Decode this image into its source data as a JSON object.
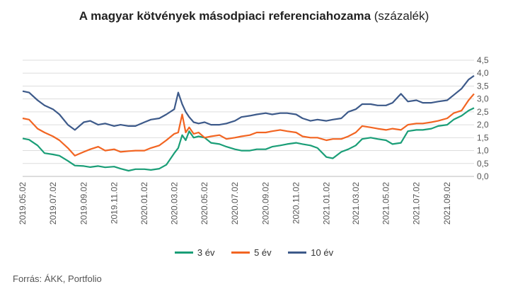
{
  "title": {
    "main": "A magyar kötvények másodpiaci referenciahozama",
    "unit": "(százalék)"
  },
  "source": "Forrás: ÁKK, Portfolio",
  "colors": {
    "series_3y": "#1a9e77",
    "series_5y": "#f26522",
    "series_10y": "#3d5a8a",
    "grid": "#dddddd",
    "axis_text": "#555555"
  },
  "legend": [
    {
      "label": "3 év",
      "color": "#1a9e77"
    },
    {
      "label": "5 év",
      "color": "#f26522"
    },
    {
      "label": "10 év",
      "color": "#3d5a8a"
    }
  ],
  "chart_data": {
    "type": "line",
    "title": "A magyar kötvények másodpiaci referenciahozama (százalék)",
    "ylim": [
      0,
      4.5
    ],
    "yticks": [
      "4,5",
      "4,0",
      "3,5",
      "3,0",
      "2,5",
      "2,0",
      "1,5",
      "1,0",
      "0,5",
      "0,0"
    ],
    "y_axis_side": "right",
    "grid": "horizontal",
    "legend_position": "bottom",
    "xticks": [
      "2019.05.02",
      "2019.07.02",
      "2019.09.02",
      "2019.11.02",
      "2020.01.02",
      "2020.03.02",
      "2020.05.02",
      "2020.07.02",
      "2020.09.02",
      "2020.11.02",
      "2021.01.02",
      "2021.03.02",
      "2021.05.02",
      "2021.07.02",
      "2021.09.02"
    ],
    "x": [
      "2019.05.02",
      "2019.05.15",
      "2019.06.01",
      "2019.06.15",
      "2019.07.02",
      "2019.07.15",
      "2019.08.01",
      "2019.08.15",
      "2019.09.02",
      "2019.09.15",
      "2019.10.01",
      "2019.10.15",
      "2019.11.02",
      "2019.11.15",
      "2019.12.01",
      "2019.12.15",
      "2020.01.02",
      "2020.01.15",
      "2020.02.01",
      "2020.02.15",
      "2020.03.02",
      "2020.03.10",
      "2020.03.18",
      "2020.03.25",
      "2020.04.01",
      "2020.04.10",
      "2020.04.20",
      "2020.05.02",
      "2020.05.15",
      "2020.06.01",
      "2020.06.15",
      "2020.07.02",
      "2020.07.15",
      "2020.08.01",
      "2020.08.15",
      "2020.09.02",
      "2020.09.15",
      "2020.10.01",
      "2020.10.15",
      "2020.11.02",
      "2020.11.15",
      "2020.12.01",
      "2020.12.15",
      "2021.01.02",
      "2021.01.15",
      "2021.02.01",
      "2021.02.15",
      "2021.03.02",
      "2021.03.15",
      "2021.04.01",
      "2021.04.15",
      "2021.05.02",
      "2021.05.15",
      "2021.06.01",
      "2021.06.15",
      "2021.07.02",
      "2021.07.15",
      "2021.08.01",
      "2021.08.15",
      "2021.09.02",
      "2021.09.15",
      "2021.10.01",
      "2021.10.15",
      "2021.10.26"
    ],
    "series": [
      {
        "name": "3 év",
        "values": [
          1.47,
          1.42,
          1.2,
          0.9,
          0.85,
          0.8,
          0.6,
          0.42,
          0.4,
          0.36,
          0.4,
          0.35,
          0.38,
          0.3,
          0.22,
          0.28,
          0.28,
          0.25,
          0.3,
          0.45,
          0.9,
          1.1,
          1.6,
          1.4,
          1.75,
          1.5,
          1.55,
          1.5,
          1.3,
          1.25,
          1.15,
          1.05,
          1.0,
          1.0,
          1.05,
          1.05,
          1.15,
          1.2,
          1.25,
          1.3,
          1.25,
          1.2,
          1.1,
          0.75,
          0.7,
          0.95,
          1.05,
          1.2,
          1.45,
          1.5,
          1.45,
          1.4,
          1.25,
          1.3,
          1.75,
          1.8,
          1.8,
          1.85,
          1.95,
          2.0,
          2.2,
          2.35,
          2.55,
          2.65
        ]
      },
      {
        "name": "5 év",
        "values": [
          2.25,
          2.2,
          1.85,
          1.7,
          1.55,
          1.4,
          1.1,
          0.8,
          0.95,
          1.05,
          1.15,
          1.0,
          1.05,
          0.95,
          0.98,
          1.0,
          1.0,
          1.1,
          1.2,
          1.4,
          1.65,
          1.7,
          2.4,
          1.7,
          1.9,
          1.65,
          1.7,
          1.5,
          1.55,
          1.6,
          1.45,
          1.5,
          1.55,
          1.6,
          1.7,
          1.7,
          1.75,
          1.8,
          1.75,
          1.7,
          1.55,
          1.5,
          1.5,
          1.4,
          1.45,
          1.45,
          1.55,
          1.7,
          1.95,
          1.9,
          1.85,
          1.8,
          1.85,
          1.8,
          2.0,
          2.05,
          2.05,
          2.1,
          2.15,
          2.25,
          2.45,
          2.55,
          2.95,
          3.2
        ]
      },
      {
        "name": "10 év",
        "values": [
          3.3,
          3.25,
          2.95,
          2.75,
          2.6,
          2.4,
          2.0,
          1.8,
          2.1,
          2.15,
          2.0,
          2.05,
          1.95,
          2.0,
          1.95,
          1.95,
          2.1,
          2.2,
          2.25,
          2.4,
          2.6,
          3.25,
          2.8,
          2.5,
          2.3,
          2.1,
          2.05,
          2.1,
          2.0,
          2.0,
          2.05,
          2.15,
          2.3,
          2.35,
          2.4,
          2.45,
          2.4,
          2.45,
          2.45,
          2.4,
          2.25,
          2.15,
          2.2,
          2.15,
          2.2,
          2.25,
          2.5,
          2.6,
          2.8,
          2.8,
          2.75,
          2.75,
          2.85,
          3.2,
          2.9,
          2.95,
          2.85,
          2.85,
          2.9,
          2.95,
          3.15,
          3.4,
          3.75,
          3.9
        ]
      }
    ]
  }
}
